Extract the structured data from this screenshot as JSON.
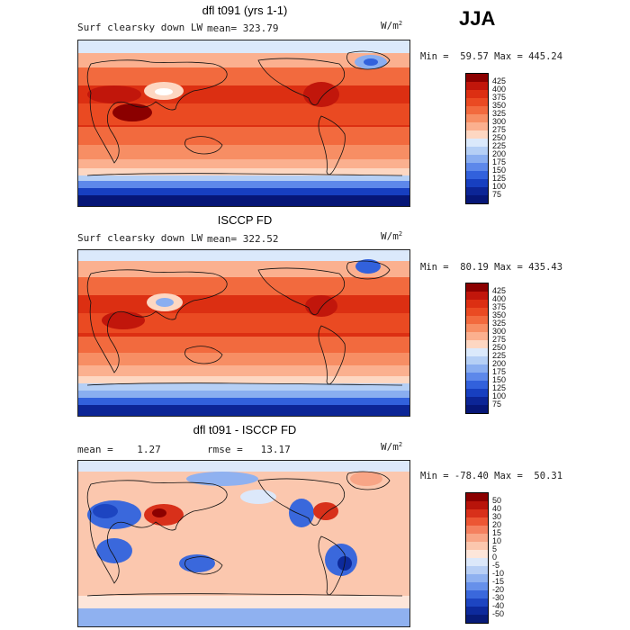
{
  "season_label": "JJA",
  "panels": [
    {
      "title": "dfl t091 (yrs 1-1)",
      "variable": "Surf clearsky down LW",
      "stat_label": "mean= 323.79",
      "units": "W/m",
      "units_sup": "2",
      "minmax": "Min =  59.57 Max = 445.24",
      "colorbar_levels": [
        "425",
        "400",
        "375",
        "350",
        "325",
        "300",
        "275",
        "250",
        "225",
        "200",
        "175",
        "150",
        "125",
        "100",
        "75"
      ],
      "colorbar_colors": [
        "#8b0000",
        "#c1160b",
        "#dc2f12",
        "#ea4a22",
        "#f26a3e",
        "#f78e64",
        "#fbb08f",
        "#fdd7c2",
        "#dbe9fb",
        "#b5cff5",
        "#8aaef0",
        "#5d88ea",
        "#3261dc",
        "#173fc0",
        "#0c2596",
        "#061677"
      ]
    },
    {
      "title": "ISCCP FD",
      "variable": "Surf clearsky down LW",
      "stat_label": "mean= 322.52",
      "units": "W/m",
      "units_sup": "2",
      "minmax": "Min =  80.19 Max = 435.43",
      "colorbar_levels": [
        "425",
        "400",
        "375",
        "350",
        "325",
        "300",
        "275",
        "250",
        "225",
        "200",
        "175",
        "150",
        "125",
        "100",
        "75"
      ],
      "colorbar_colors": [
        "#8b0000",
        "#c1160b",
        "#dc2f12",
        "#ea4a22",
        "#f26a3e",
        "#f78e64",
        "#fbb08f",
        "#fdd7c2",
        "#dbe9fb",
        "#b5cff5",
        "#8aaef0",
        "#5d88ea",
        "#3261dc",
        "#173fc0",
        "#0c2596",
        "#061677"
      ]
    },
    {
      "title": "dfl t091 - ISCCP FD",
      "stat_label": "mean =    1.27",
      "stat_label2": "rmse =   13.17",
      "units": "W/m",
      "units_sup": "2",
      "minmax": "Min = -78.40 Max =  50.31",
      "colorbar_levels": [
        "50",
        "40",
        "30",
        "20",
        "15",
        "10",
        "5",
        "0",
        "-5",
        "-10",
        "-15",
        "-20",
        "-30",
        "-40",
        "-50"
      ],
      "colorbar_colors": [
        "#8b0000",
        "#b8140a",
        "#d8301a",
        "#ec5634",
        "#f4805f",
        "#f8a586",
        "#fbc7ae",
        "#fde6da",
        "#dce8fa",
        "#b8cff5",
        "#8fb1f0",
        "#6690ea",
        "#3a68dc",
        "#1d45c1",
        "#0d2a9c",
        "#071b78"
      ]
    }
  ]
}
